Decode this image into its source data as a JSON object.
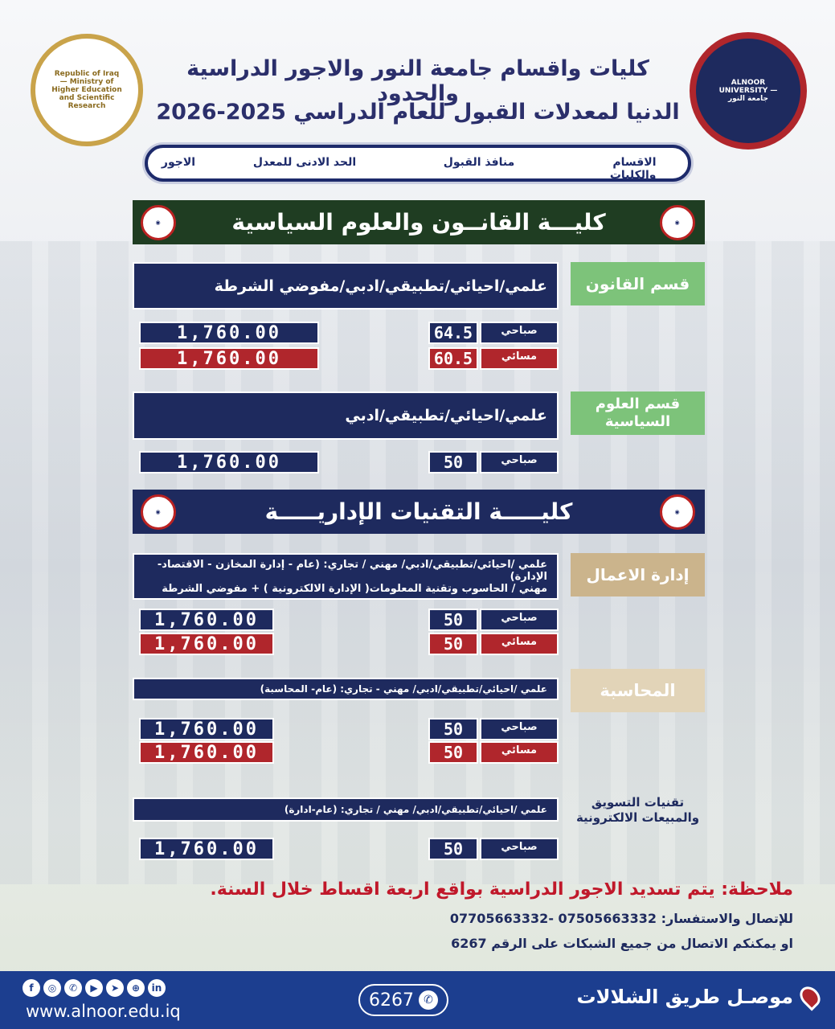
{
  "header": {
    "title_line1": "كليات واقسام  جامعة النور  والاجور الدراسية والحدود",
    "title_line2": "الدنيا لمعدلات القبول للعام الدراسي 2025-2026",
    "left_logo_text": "Republic of Iraq — Ministry of Higher Education and Scientific Research",
    "right_logo_text": "ALNOOR UNIVERSITY — جامعة النور"
  },
  "columns": {
    "departments": "الاقسام والكليات",
    "admission": "منافذ القبول",
    "min_rate": "الحد الادنى للمعدل",
    "fees": "الاجور"
  },
  "colleges": [
    {
      "name": "كليـــة القانــون والعلوم السياسية",
      "color": "#1f3d22"
    },
    {
      "name": "كليـــــة التقنيات الإداريـــــة",
      "color": "#1e2a5e"
    }
  ],
  "departments": [
    {
      "name": "قسم القانون",
      "label_color": "#7dc37a",
      "admission": [
        "علمي/احيائي/تطبيقي/ادبي/مفوضي الشرطة"
      ],
      "rows": [
        {
          "shift": "صباحي",
          "rate": "64.5",
          "fee": "1,760.00"
        },
        {
          "shift": "مسائي",
          "rate": "60.5",
          "fee": "1,760.00"
        }
      ]
    },
    {
      "name": "قسم العلوم السياسية",
      "label_color": "#7dc37a",
      "admission": [
        "علمي/احيائي/تطبيقي/ادبي"
      ],
      "rows": [
        {
          "shift": "صباحي",
          "rate": "50",
          "fee": "1,760.00"
        }
      ]
    },
    {
      "name": "إدارة الاعمال",
      "label_color": "#cbb48c",
      "admission": [
        "علمي /احيائي/تطبيقي/ادبي/ مهني / تجاري: (عام - إدارة المخازن - الاقتصاد- الإدارة)",
        "مهني / الحاسوب وتقنية المعلومات( الإدارة الالكترونية ) + مفوضي الشرطة"
      ],
      "rows": [
        {
          "shift": "صباحي",
          "rate": "50",
          "fee": "1,760.00"
        },
        {
          "shift": "مسائي",
          "rate": "50",
          "fee": "1,760.00"
        }
      ]
    },
    {
      "name": "المحاسبة",
      "label_color": "#e2d4b8",
      "admission": [
        "علمي /احيائي/تطبيقي/ادبي/ مهني - تجاري: (عام- المحاسبة)"
      ],
      "rows": [
        {
          "shift": "صباحي",
          "rate": "50",
          "fee": "1,760.00"
        },
        {
          "shift": "مسائي",
          "rate": "50",
          "fee": "1,760.00"
        }
      ]
    },
    {
      "name": "تقنيات التسويق والمبيعات الالكترونية",
      "label_color": "transparent",
      "admission": [
        "علمي /احيائي/تطبيقي/ادبي/ مهني / تجاري: (عام-ادارة)"
      ],
      "rows": [
        {
          "shift": "صباحي",
          "rate": "50",
          "fee": "1,760.00"
        }
      ]
    }
  ],
  "notes": {
    "fees_note": "ملاحظة: يتم تسديد الاجور الدراسية بواقع اربعة اقساط خلال السنة.",
    "contact_label": "للإتصال والاستفسار:",
    "contact_numbers": "07505663332  -07705663332",
    "short_number_line": "او يمكنكم الاتصال من جميع الشبكات على الرقم  6267"
  },
  "footer": {
    "website": "www.alnoor.edu.iq",
    "hotline": "6267",
    "location": "موصـل طريق  الشلالات",
    "social_icons": [
      "facebook",
      "instagram",
      "whatsapp",
      "youtube",
      "telegram",
      "web",
      "linkedin"
    ]
  },
  "colors": {
    "navy": "#1e2a5e",
    "red": "#b0262c",
    "footer": "#1c3e8f",
    "note_red": "#c0182a"
  }
}
